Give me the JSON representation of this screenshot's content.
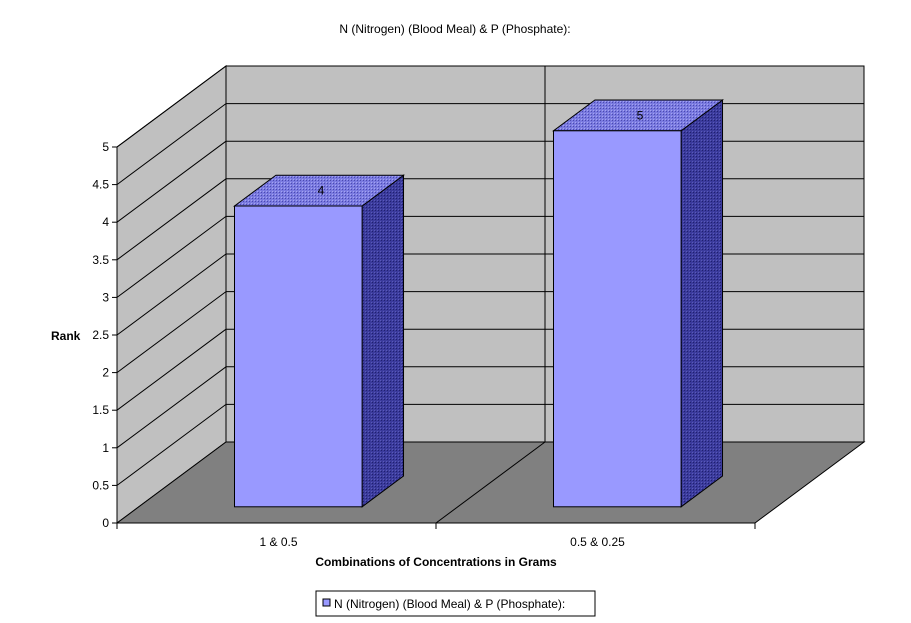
{
  "chart_data": {
    "type": "bar",
    "title": "N (Nitrogen) (Blood Meal) & P (Phosphate):",
    "xlabel": "Combinations of Concentrations in Grams",
    "ylabel": "Rank",
    "categories": [
      "1 & 0.5",
      "0.5 & 0.25"
    ],
    "series": [
      {
        "name": "N (Nitrogen) (Blood Meal) & P (Phosphate):",
        "values": [
          4,
          5
        ],
        "labels": [
          "4",
          "5"
        ]
      }
    ],
    "ylim": [
      0,
      5
    ],
    "yticks": [
      "0",
      "0.5",
      "1",
      "1.5",
      "2",
      "2.5",
      "3",
      "3.5",
      "4",
      "4.5",
      "5"
    ],
    "grid": true,
    "legend_position": "bottom",
    "colors": {
      "bar_front": "#9999FF",
      "bar_top": "#6F6FD9",
      "bar_side": "#333399",
      "back_wall": "#C0C0C0",
      "side_wall": "#C0C0C0",
      "floor": "#808080"
    }
  }
}
